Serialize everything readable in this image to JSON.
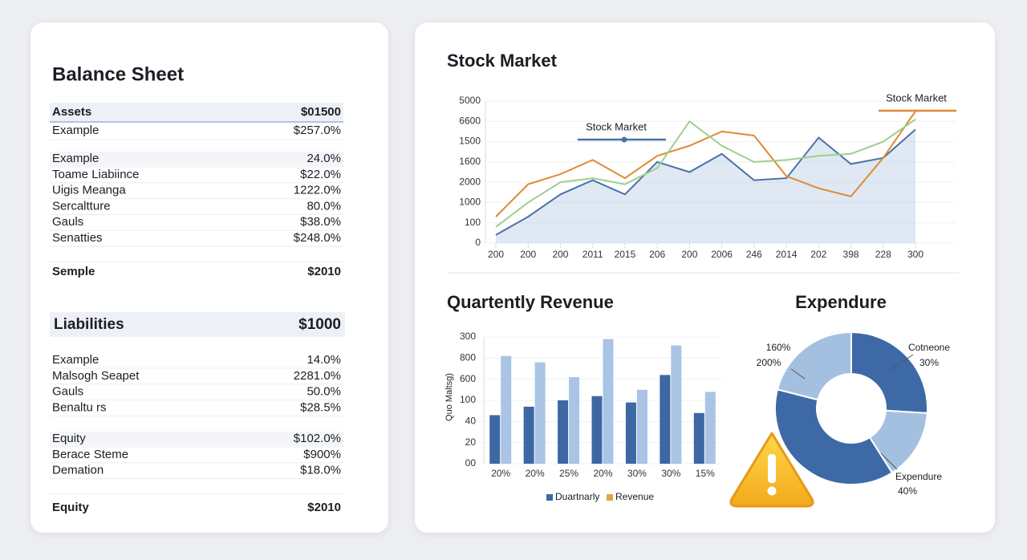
{
  "balance_sheet": {
    "title": "Balance Sheet",
    "assets_header": [
      "Assets",
      "$01500"
    ],
    "assets_group1": [
      [
        "Example",
        "$257.0%"
      ]
    ],
    "assets_group2": [
      [
        "Example",
        "24.0%"
      ],
      [
        "Toame Liabiince",
        "$22.0%"
      ],
      [
        "Uigis Meanga",
        "1222.0%"
      ],
      [
        "Sercaltture",
        "80.0%"
      ],
      [
        "Gauls",
        "$38.0%"
      ],
      [
        "Senatties",
        "$248.0%"
      ]
    ],
    "assets_total": [
      "Semple",
      "$2010"
    ],
    "liabilities_header": [
      "Liabilities",
      "$1000"
    ],
    "liabilities_rows": [
      [
        "Example",
        "14.0%"
      ],
      [
        "Malsogh Seapet",
        "2281.0%"
      ],
      [
        "Gauls",
        "50.0%"
      ],
      [
        "Benaltu rs",
        "$28.5%"
      ]
    ],
    "equity_rows": [
      [
        "Equity",
        "$102.0%"
      ],
      [
        "Berace Steme",
        "$900%"
      ],
      [
        "Demation",
        "$18.0%"
      ]
    ],
    "equity_total": [
      "Equity",
      "$2010"
    ]
  },
  "chart_data": [
    {
      "type": "line",
      "title": "Stock Market",
      "categories": [
        "200",
        "200",
        "200",
        "2011",
        "2015",
        "206",
        "200",
        "2006",
        "246",
        "2014",
        "202",
        "398",
        "228",
        "300"
      ],
      "series": [
        {
          "name": "Stock Market",
          "color": "#4a72aa",
          "values": [
            0.4,
            1.3,
            2.4,
            3.1,
            2.4,
            4.0,
            3.5,
            4.4,
            3.1,
            3.2,
            5.2,
            3.9,
            4.2,
            5.6
          ]
        },
        {
          "name": "Stock Market",
          "color": "#e08a35",
          "values": [
            1.3,
            2.9,
            3.4,
            4.1,
            3.2,
            4.3,
            4.8,
            5.5,
            5.3,
            3.3,
            2.7,
            2.3,
            4.2,
            6.5
          ]
        },
        {
          "color": "#9fcf8e",
          "values": [
            0.8,
            2.0,
            3.0,
            3.2,
            2.9,
            3.7,
            6.0,
            4.8,
            4.0,
            4.1,
            4.3,
            4.4,
            5.0,
            6.1
          ]
        }
      ],
      "ylim": [
        0,
        7
      ],
      "yticks": [
        0,
        {
          "value": 1,
          "label": "100"
        },
        {
          "value": 2,
          "label": "1000"
        },
        {
          "value": 3,
          "label": "2000"
        },
        {
          "value": 4,
          "label": "1600"
        },
        {
          "value": 5,
          "label": "1500"
        },
        {
          "value": 6,
          "label": "6600"
        },
        {
          "value": 7,
          "label": "5000"
        }
      ],
      "grid": true,
      "area": true
    },
    {
      "type": "bar",
      "title": "Quartently Revenue",
      "y_label": "Quo Maltsg)",
      "categories": [
        "20%",
        "20%",
        "25%",
        "20%",
        "30%",
        "30%",
        "15%"
      ],
      "series": [
        {
          "name": "Duartnarly",
          "color": "#3d68a3",
          "values": [
            2.3,
            2.7,
            3.0,
            3.2,
            2.9,
            4.2,
            2.4
          ]
        },
        {
          "name": "Revenue",
          "color": "#a9c4e4",
          "legend_color": "#d8a93e",
          "values": [
            5.1,
            4.8,
            4.1,
            5.9,
            3.5,
            5.6,
            3.4
          ]
        }
      ],
      "ylim": [
        0,
        6
      ],
      "yticks": [
        {
          "value": 0,
          "label": "00"
        },
        {
          "value": 1,
          "label": "20"
        },
        {
          "value": 2,
          "label": "40"
        },
        {
          "value": 3,
          "label": "100"
        },
        {
          "value": 4,
          "label": "600"
        },
        {
          "value": 5,
          "label": "800"
        },
        {
          "value": 6,
          "label": "300"
        }
      ]
    },
    {
      "type": "donut",
      "title": "Expendure",
      "categories": [
        null,
        null,
        null,
        null
      ],
      "values": [
        26,
        15,
        38,
        21
      ],
      "colors": [
        "#3d6aa6",
        "#a3c0e0",
        "#3d6aa6",
        "#a3c0e0"
      ],
      "annotations": [
        "160%",
        "200%",
        "Cotneone",
        "30%",
        "Expendure",
        "40%"
      ]
    }
  ]
}
